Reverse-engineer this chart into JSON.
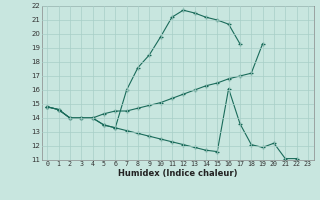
{
  "xlabel": "Humidex (Indice chaleur)",
  "bg_color": "#c8e6df",
  "grid_color": "#a8cfc8",
  "line_color": "#1a6b5a",
  "x_min": 0,
  "x_max": 23,
  "y_min": 11,
  "y_max": 22,
  "s1x": [
    0,
    1,
    2,
    3,
    4,
    5,
    6,
    7,
    8,
    9,
    10,
    11,
    12,
    13,
    14,
    15,
    16,
    17
  ],
  "s1y": [
    14.8,
    14.6,
    14.0,
    14.0,
    14.0,
    13.5,
    13.3,
    16.0,
    17.6,
    18.5,
    19.8,
    21.2,
    21.7,
    21.5,
    21.2,
    21.0,
    20.7,
    19.3
  ],
  "s2x": [
    0,
    1,
    2,
    3,
    4,
    5,
    6,
    7,
    8,
    9,
    10,
    11,
    12,
    13,
    14,
    15,
    16,
    17,
    18,
    19
  ],
  "s2y": [
    14.8,
    14.6,
    14.0,
    14.0,
    14.0,
    14.3,
    14.5,
    14.5,
    14.7,
    14.9,
    15.1,
    15.4,
    15.7,
    16.0,
    16.3,
    16.5,
    16.8,
    17.0,
    17.2,
    19.3
  ],
  "s3x": [
    0,
    1,
    2,
    3,
    4,
    5,
    6,
    7,
    8,
    9,
    10,
    11,
    12,
    13,
    14,
    15,
    16,
    17,
    18,
    19,
    20,
    21,
    22
  ],
  "s3y": [
    14.8,
    14.6,
    14.0,
    14.0,
    14.0,
    13.5,
    13.3,
    13.1,
    12.9,
    12.7,
    12.5,
    12.3,
    12.1,
    11.9,
    11.7,
    11.6,
    16.1,
    13.6,
    12.1,
    11.9,
    12.2,
    11.1,
    11.1
  ]
}
